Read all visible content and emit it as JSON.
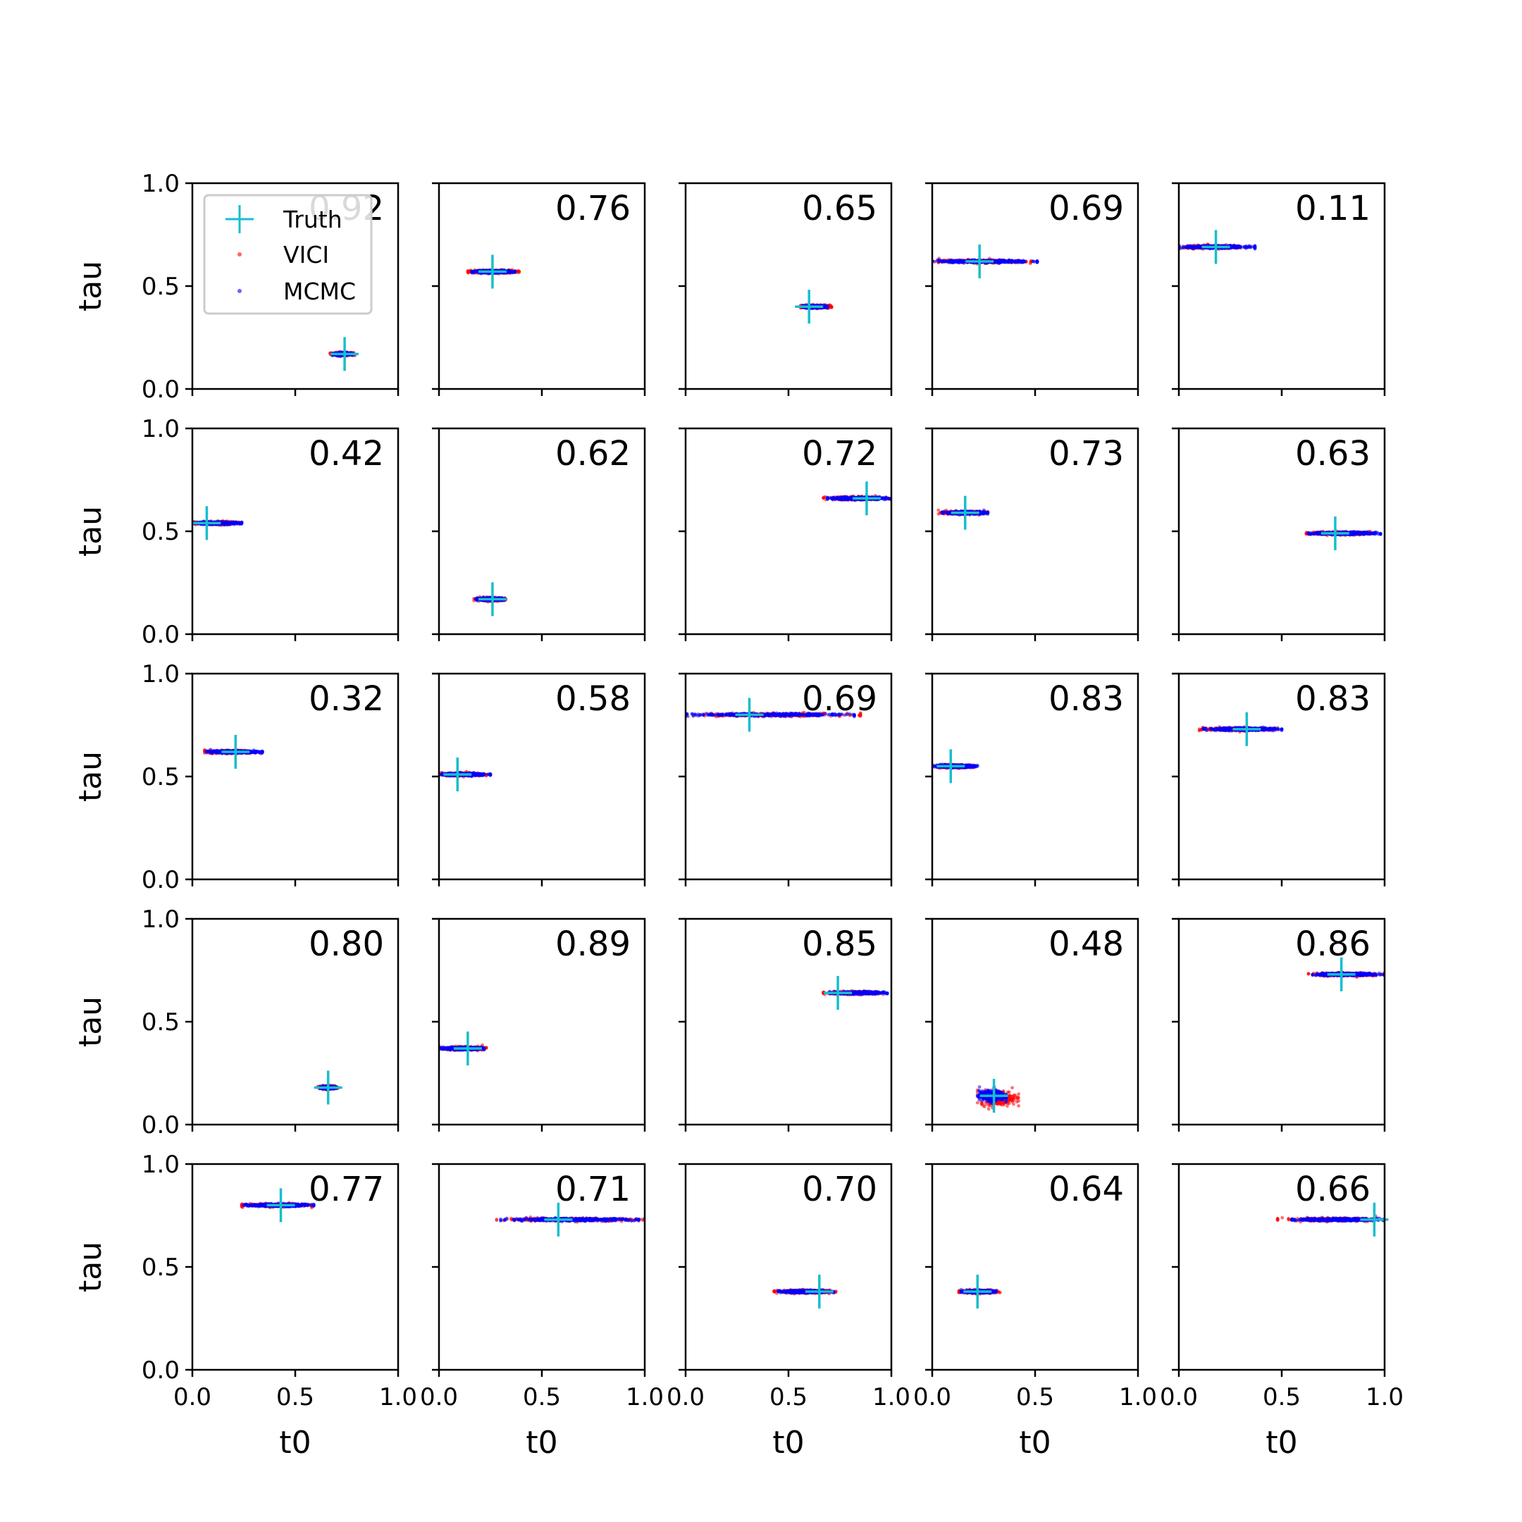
{
  "chart_data": {
    "type": "scatter",
    "grid_rows": 5,
    "grid_cols": 5,
    "xlabel": "t0",
    "ylabel": "tau",
    "xlim": [
      0,
      1
    ],
    "ylim": [
      0,
      1
    ],
    "x_ticks": [
      "0.0",
      "0.5",
      "1.0"
    ],
    "y_ticks": [
      "0.0",
      "0.5",
      "1.0"
    ],
    "grid": false,
    "legend": {
      "placement": "upper-left of first panel",
      "entries": [
        {
          "label": "Truth",
          "marker": "plus",
          "color": "#17becf"
        },
        {
          "label": "VICI",
          "marker": "dot",
          "color": "#ff0000"
        },
        {
          "label": "MCMC",
          "marker": "dot",
          "color": "#0000ff"
        }
      ]
    },
    "colors": {
      "truth": "#17becf",
      "vici": "#ff0000",
      "mcmc": "#0000ff"
    },
    "panels": [
      {
        "label": "0.92",
        "truth": [
          0.74,
          0.17
        ],
        "vici": {
          "x": [
            0.67,
            0.79
          ],
          "y": 0.17
        },
        "mcmc": {
          "x": [
            0.68,
            0.78
          ],
          "y": 0.17
        }
      },
      {
        "label": "0.76",
        "truth": [
          0.26,
          0.57
        ],
        "vici": {
          "x": [
            0.14,
            0.39
          ],
          "y": 0.57
        },
        "mcmc": {
          "x": [
            0.16,
            0.37
          ],
          "y": 0.57
        }
      },
      {
        "label": "0.65",
        "truth": [
          0.6,
          0.4
        ],
        "vici": {
          "x": [
            0.56,
            0.71
          ],
          "y": 0.4
        },
        "mcmc": {
          "x": [
            0.57,
            0.69
          ],
          "y": 0.4
        }
      },
      {
        "label": "0.69",
        "truth": [
          0.23,
          0.62
        ],
        "vici": {
          "x": [
            0.0,
            0.48
          ],
          "y": 0.62
        },
        "mcmc": {
          "x": [
            0.0,
            0.51
          ],
          "y": 0.62
        }
      },
      {
        "label": "0.11",
        "truth": [
          0.18,
          0.69
        ],
        "vici": {
          "x": [
            0.0,
            0.34
          ],
          "y": 0.69
        },
        "mcmc": {
          "x": [
            0.0,
            0.37
          ],
          "y": 0.69
        }
      },
      {
        "label": "0.42",
        "truth": [
          0.07,
          0.54
        ],
        "vici": {
          "x": [
            0.0,
            0.23
          ],
          "y": 0.54
        },
        "mcmc": {
          "x": [
            0.0,
            0.24
          ],
          "y": 0.54
        }
      },
      {
        "label": "0.62",
        "truth": [
          0.26,
          0.17
        ],
        "vici": {
          "x": [
            0.17,
            0.33
          ],
          "y": 0.17
        },
        "mcmc": {
          "x": [
            0.18,
            0.32
          ],
          "y": 0.17
        }
      },
      {
        "label": "0.72",
        "truth": [
          0.88,
          0.66
        ],
        "vici": {
          "x": [
            0.67,
            1.0
          ],
          "y": 0.66
        },
        "mcmc": {
          "x": [
            0.69,
            1.0
          ],
          "y": 0.66
        }
      },
      {
        "label": "0.73",
        "truth": [
          0.16,
          0.59
        ],
        "vici": {
          "x": [
            0.03,
            0.27
          ],
          "y": 0.59
        },
        "mcmc": {
          "x": [
            0.05,
            0.27
          ],
          "y": 0.59
        }
      },
      {
        "label": "0.63",
        "truth": [
          0.76,
          0.49
        ],
        "vici": {
          "x": [
            0.62,
            0.95
          ],
          "y": 0.49
        },
        "mcmc": {
          "x": [
            0.63,
            0.98
          ],
          "y": 0.49
        }
      },
      {
        "label": "0.32",
        "truth": [
          0.21,
          0.62
        ],
        "vici": {
          "x": [
            0.06,
            0.33
          ],
          "y": 0.62
        },
        "mcmc": {
          "x": [
            0.07,
            0.34
          ],
          "y": 0.62
        }
      },
      {
        "label": "0.58",
        "truth": [
          0.09,
          0.51
        ],
        "vici": {
          "x": [
            0.0,
            0.23
          ],
          "y": 0.51
        },
        "mcmc": {
          "x": [
            0.0,
            0.25
          ],
          "y": 0.51
        }
      },
      {
        "label": "0.69",
        "truth": [
          0.31,
          0.8
        ],
        "vici": {
          "x": [
            0.0,
            0.85
          ],
          "y": 0.8
        },
        "mcmc": {
          "x": [
            0.0,
            0.82
          ],
          "y": 0.8
        }
      },
      {
        "label": "0.83",
        "truth": [
          0.09,
          0.55
        ],
        "vici": {
          "x": [
            0.0,
            0.2
          ],
          "y": 0.55
        },
        "mcmc": {
          "x": [
            0.0,
            0.22
          ],
          "y": 0.55
        }
      },
      {
        "label": "0.83",
        "truth": [
          0.33,
          0.73
        ],
        "vici": {
          "x": [
            0.1,
            0.48
          ],
          "y": 0.73
        },
        "mcmc": {
          "x": [
            0.12,
            0.5
          ],
          "y": 0.73
        }
      },
      {
        "label": "0.80",
        "truth": [
          0.66,
          0.18
        ],
        "vici": {
          "x": [
            0.61,
            0.71
          ],
          "y": 0.18
        },
        "mcmc": {
          "x": [
            0.62,
            0.7
          ],
          "y": 0.18
        }
      },
      {
        "label": "0.89",
        "truth": [
          0.14,
          0.37
        ],
        "vici": {
          "x": [
            0.0,
            0.23
          ],
          "y": 0.37
        },
        "mcmc": {
          "x": [
            0.01,
            0.22
          ],
          "y": 0.37
        }
      },
      {
        "label": "0.85",
        "truth": [
          0.74,
          0.64
        ],
        "vici": {
          "x": [
            0.67,
            0.96
          ],
          "y": 0.64
        },
        "mcmc": {
          "x": [
            0.7,
            0.98
          ],
          "y": 0.64
        }
      },
      {
        "label": "0.48",
        "truth": [
          0.3,
          0.14
        ],
        "vici": {
          "x": [
            0.22,
            0.42
          ],
          "y": 0.13
        },
        "mcmc": {
          "x": [
            0.22,
            0.36
          ],
          "y": 0.14
        }
      },
      {
        "label": "0.86",
        "truth": [
          0.79,
          0.73
        ],
        "vici": {
          "x": [
            0.63,
            1.0
          ],
          "y": 0.73
        },
        "mcmc": {
          "x": [
            0.65,
            1.0
          ],
          "y": 0.73
        }
      },
      {
        "label": "0.77",
        "truth": [
          0.43,
          0.8
        ],
        "vici": {
          "x": [
            0.24,
            0.58
          ],
          "y": 0.8
        },
        "mcmc": {
          "x": [
            0.25,
            0.59
          ],
          "y": 0.8
        }
      },
      {
        "label": "0.71",
        "truth": [
          0.58,
          0.73
        ],
        "vici": {
          "x": [
            0.28,
            1.0
          ],
          "y": 0.73
        },
        "mcmc": {
          "x": [
            0.3,
            1.0
          ],
          "y": 0.73
        }
      },
      {
        "label": "0.70",
        "truth": [
          0.65,
          0.38
        ],
        "vici": {
          "x": [
            0.43,
            0.73
          ],
          "y": 0.38
        },
        "mcmc": {
          "x": [
            0.45,
            0.72
          ],
          "y": 0.38
        }
      },
      {
        "label": "0.64",
        "truth": [
          0.22,
          0.38
        ],
        "vici": {
          "x": [
            0.13,
            0.33
          ],
          "y": 0.38
        },
        "mcmc": {
          "x": [
            0.14,
            0.31
          ],
          "y": 0.38
        }
      },
      {
        "label": "0.66",
        "truth": [
          0.95,
          0.73
        ],
        "vici": {
          "x": [
            0.48,
            1.0
          ],
          "y": 0.73
        },
        "mcmc": {
          "x": [
            0.55,
            1.0
          ],
          "y": 0.73
        }
      }
    ]
  }
}
